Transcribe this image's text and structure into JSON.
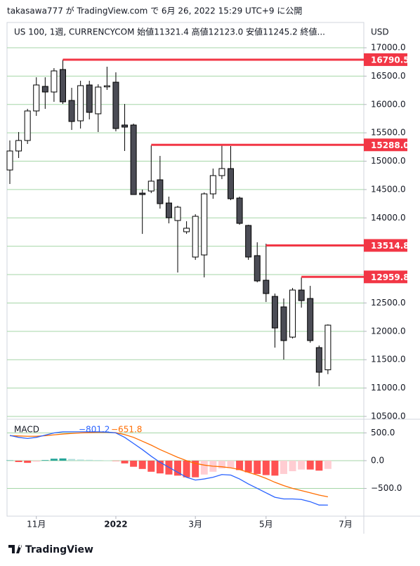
{
  "header": "takasawa777 が TradingView.com で 6月 26, 2022 15:29 UTC+9 に公開",
  "footer": "TradingView",
  "chart_data": [
    {
      "type": "candlestick",
      "legend": "US 100, 1週, CURRENCYCOM  始値11321.4  高値12123.0  安値11245.2  終値...",
      "unit": "USD",
      "open": [
        14845,
        15180,
        15365,
        15886,
        16319,
        16220,
        16617,
        16071,
        15712,
        16344,
        15836,
        16310,
        16393,
        15638,
        15638,
        14437,
        14474,
        14672,
        14263,
        13954,
        13756,
        13310,
        13347,
        14424,
        14746,
        14870,
        14350,
        13867,
        13335,
        12901,
        12616,
        12431,
        11898,
        12728,
        12579,
        11713,
        11321.4
      ],
      "high": [
        15365,
        15514,
        15923,
        16480,
        16480,
        16641,
        16790,
        16294,
        16418,
        16418,
        16356,
        16666,
        16567,
        16009,
        15663,
        14499,
        15279,
        15093,
        14375,
        14214,
        13941,
        14065,
        14449,
        14870,
        15279,
        15267,
        14375,
        13879,
        13570,
        13545,
        12666,
        12579,
        12765,
        12951,
        12802,
        11750,
        12123
      ],
      "low": [
        14598,
        15056,
        15304,
        15799,
        15923,
        16047,
        16009,
        15551,
        15576,
        15737,
        15514,
        16257,
        15526,
        15180,
        14412,
        13718,
        14437,
        14164,
        13904,
        13037,
        13718,
        13260,
        12951,
        14338,
        14684,
        14313,
        13879,
        13260,
        12864,
        12517,
        11713,
        11502,
        11874,
        12418,
        11799,
        11031,
        11245.2
      ],
      "close": [
        15180,
        15365,
        15886,
        16344,
        16220,
        16592,
        16047,
        15700,
        16332,
        15861,
        16307,
        16330,
        15576,
        15601,
        14412,
        14412,
        14648,
        14251,
        14003,
        14189,
        13818,
        14028,
        14424,
        14746,
        14870,
        14338,
        13904,
        13310,
        12889,
        12666,
        12059,
        11837,
        12728,
        12542,
        11837,
        11279,
        12109
      ],
      "up_color": "#ffffff",
      "down_color": "#4b4c55",
      "wick_color": "#000000",
      "levels": [
        {
          "value": 16790.5,
          "label": "16790.5"
        },
        {
          "value": 15288,
          "label": "15288.0"
        },
        {
          "value": 13514.8,
          "label": "13514.8"
        },
        {
          "value": 12959.8,
          "label": "12959.8"
        }
      ],
      "level_color": "#f23645",
      "ylim": [
        10450,
        17446
      ],
      "yticks": [
        {
          "value": 10500,
          "label": "10500.0"
        },
        {
          "value": 11000,
          "label": "11000.0"
        },
        {
          "value": 11500,
          "label": "11500.0"
        },
        {
          "value": 12000,
          "label": "12000.0"
        },
        {
          "value": 12500,
          "label": "12500.0"
        },
        {
          "value": 13000,
          "label": "13000.0"
        },
        {
          "value": 13500,
          "label": "13500.0"
        },
        {
          "value": 14000,
          "label": "14000.0"
        },
        {
          "value": 14500,
          "label": "14500.0"
        },
        {
          "value": 15000,
          "label": "15000.0"
        },
        {
          "value": 15500,
          "label": "15500.0"
        },
        {
          "value": 16000,
          "label": "16000.0"
        },
        {
          "value": 16500,
          "label": "16500.0"
        },
        {
          "value": 17000,
          "label": "17000.0"
        }
      ],
      "grid": true,
      "grid_color": "#a5d6a7",
      "xticks": [
        {
          "value": 3,
          "label": "11月"
        },
        {
          "value": 12,
          "label": "2022"
        },
        {
          "value": 21,
          "label": "3月"
        },
        {
          "value": 29,
          "label": "5月"
        },
        {
          "value": 38,
          "label": "7月"
        }
      ]
    },
    {
      "type": "macd",
      "title": "MACD",
      "macd": [
        456,
        420,
        400,
        420,
        460,
        500,
        520,
        520,
        520,
        520,
        520,
        515,
        500,
        420,
        310,
        200,
        80,
        -30,
        -120,
        -210,
        -300,
        -350,
        -330,
        -300,
        -250,
        -260,
        -330,
        -420,
        -500,
        -580,
        -660,
        -690,
        -690,
        -700,
        -740,
        -800,
        -801.2
      ],
      "signal": [
        450,
        445,
        440,
        440,
        450,
        465,
        480,
        490,
        500,
        505,
        510,
        510,
        505,
        470,
        420,
        350,
        280,
        200,
        130,
        60,
        0,
        -50,
        -80,
        -100,
        -110,
        -130,
        -160,
        -210,
        -260,
        -320,
        -390,
        -450,
        -500,
        -540,
        -580,
        -620,
        -651.8
      ],
      "histogram": [
        6,
        -25,
        -40,
        -20,
        10,
        35,
        40,
        30,
        20,
        15,
        10,
        5,
        -5,
        -50,
        -110,
        -150,
        -200,
        -230,
        -250,
        -270,
        -300,
        -300,
        -250,
        -200,
        -140,
        -130,
        -170,
        -210,
        -240,
        -260,
        -270,
        -240,
        -190,
        -160,
        -160,
        -180,
        -149.4
      ],
      "macd_label": "−801.2",
      "signal_label": "−651.8",
      "macd_color": "#2962ff",
      "signal_color": "#ff6d00",
      "hist_colors": [
        "#26a69a",
        "#b2dfdb",
        "#ff5252",
        "#ffcdd2"
      ],
      "ylim": [
        -937,
        734
      ],
      "yticks": [
        {
          "value": -500,
          "label": "−500.0"
        },
        {
          "value": 0,
          "label": "0.0"
        },
        {
          "value": 500,
          "label": "500.0"
        }
      ],
      "grid": true,
      "grid_color": "#a5d6a7"
    }
  ]
}
